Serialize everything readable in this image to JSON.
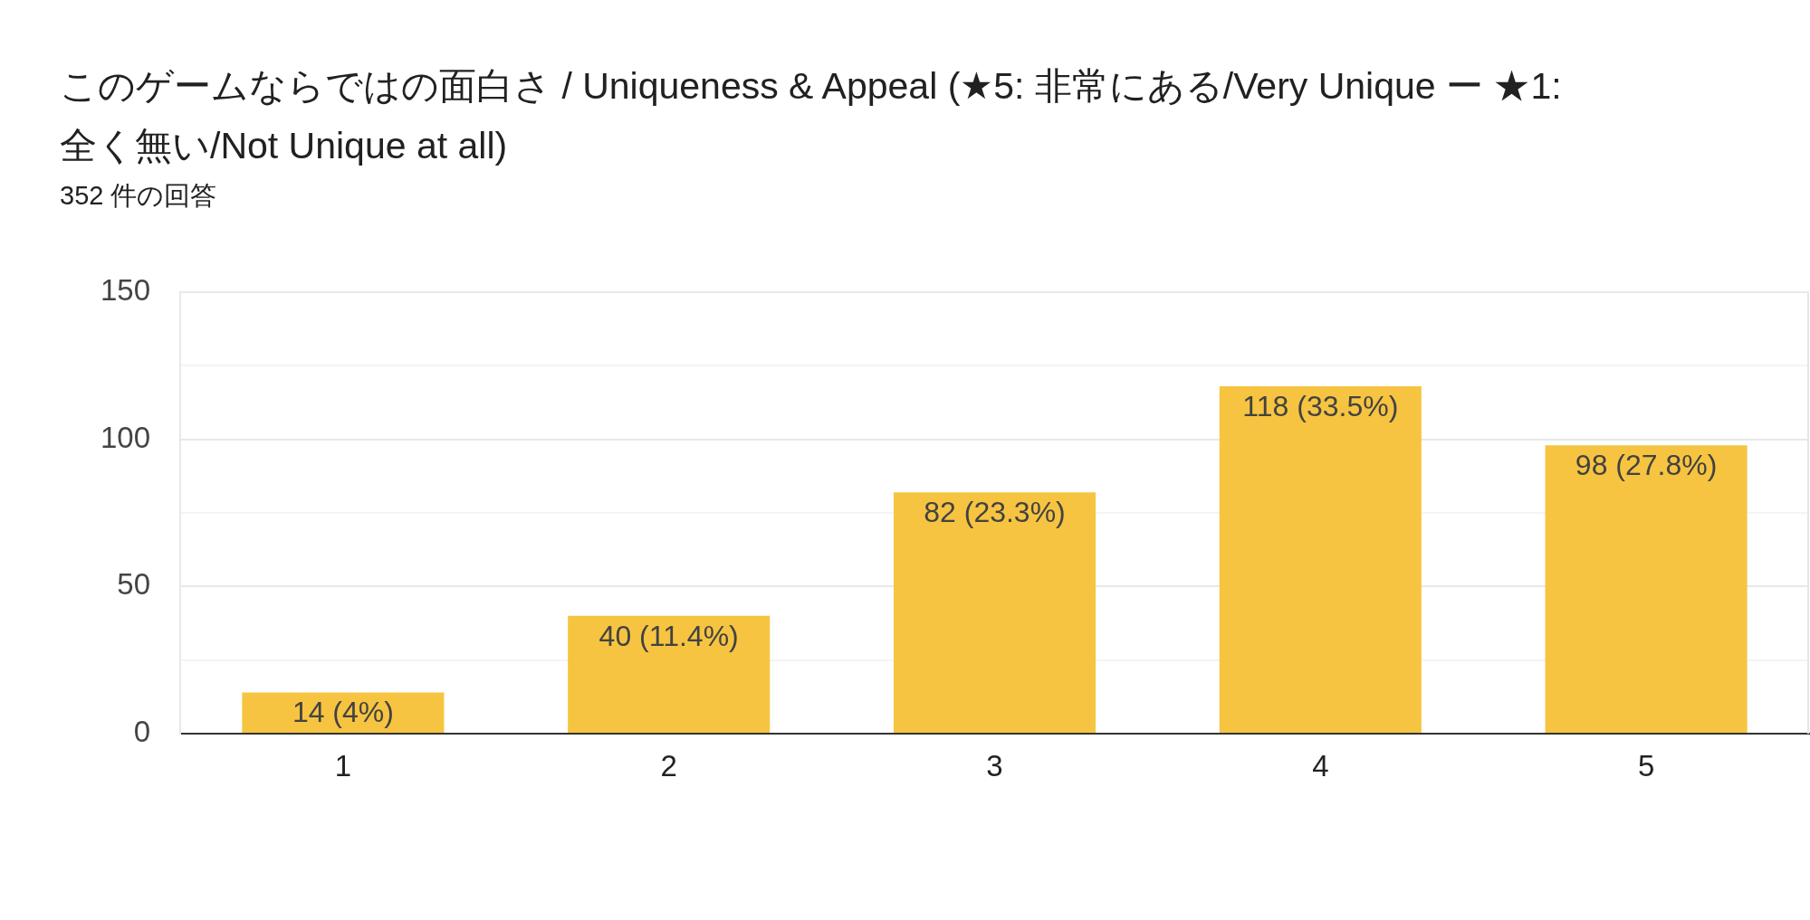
{
  "chart_data": {
    "type": "bar",
    "title": "このゲームならではの面白さ / Uniqueness & Appeal (★5: 非常にある/Very Unique ー ★1: 全く無い/Not Unique at all)",
    "subtitle": "352 件の回答",
    "categories": [
      "1",
      "2",
      "3",
      "4",
      "5"
    ],
    "values": [
      14,
      40,
      82,
      118,
      98
    ],
    "color": "#f6c440",
    "value_labels": [
      "14 (4%)",
      "40 (11.4%)",
      "82 (23.3%)",
      "118 (33.5%)",
      "98 (27.8%)"
    ],
    "ylim": [
      0,
      150
    ],
    "yticks": [
      0,
      {
        "value": 25,
        "label": null
      },
      50,
      {
        "value": 75,
        "label": null
      },
      100,
      {
        "value": 125,
        "label": null
      },
      150
    ],
    "grid": "y"
  }
}
